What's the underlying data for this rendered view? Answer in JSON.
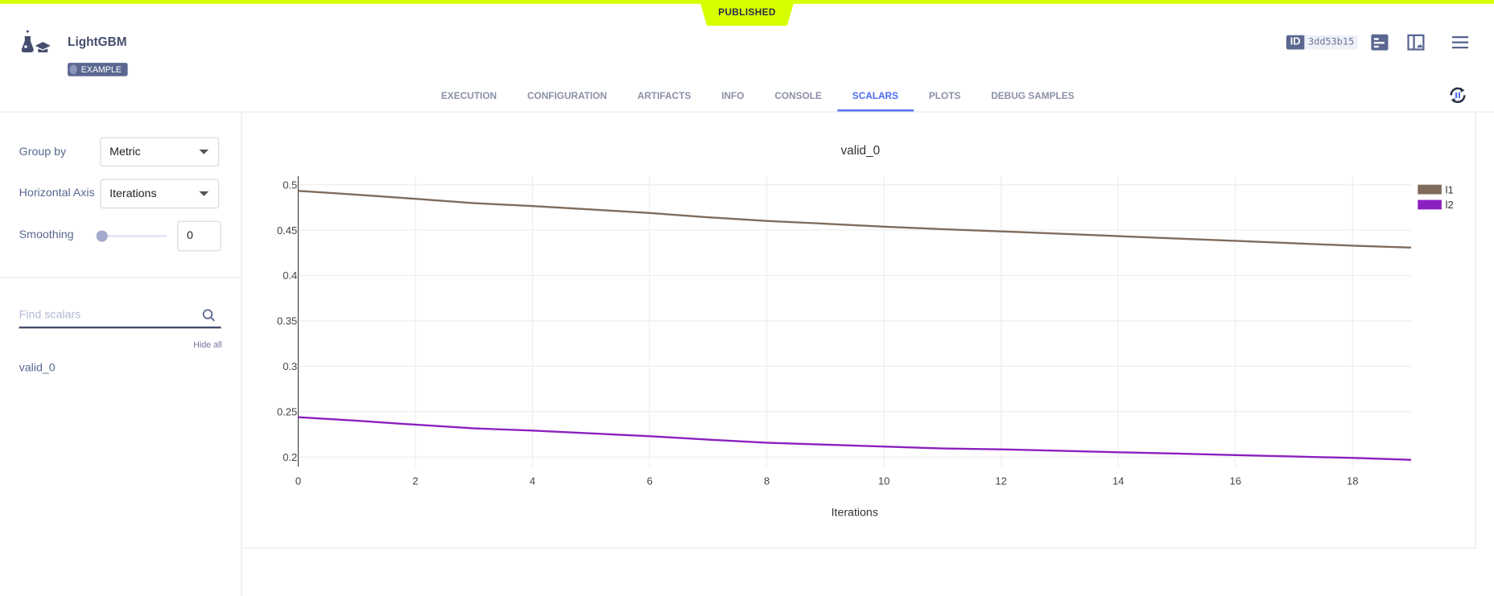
{
  "header": {
    "status": "PUBLISHED",
    "title": "LightGBM",
    "badge": "EXAMPLE",
    "id_label": "ID",
    "id_value": "3dd53b15"
  },
  "tabs": [
    {
      "label": "EXECUTION"
    },
    {
      "label": "CONFIGURATION"
    },
    {
      "label": "ARTIFACTS"
    },
    {
      "label": "INFO"
    },
    {
      "label": "CONSOLE"
    },
    {
      "label": "SCALARS",
      "active": true
    },
    {
      "label": "PLOTS"
    },
    {
      "label": "DEBUG SAMPLES"
    }
  ],
  "settings": {
    "group_by_label": "Group by",
    "group_by_value": "Metric",
    "horizontal_axis_label": "Horizontal Axis",
    "horizontal_axis_value": "Iterations",
    "smoothing_label": "Smoothing",
    "smoothing_value": "0",
    "smoothing_level": 0
  },
  "scalars": {
    "search_placeholder": "Find scalars",
    "hide_all": "Hide all",
    "items": [
      "valid_0"
    ]
  },
  "colors": {
    "accent": "#4d6df2",
    "published": "#d8ff00"
  },
  "chart_data": {
    "type": "line",
    "title": "valid_0",
    "xlabel": "Iterations",
    "ylabel": "",
    "xlim": [
      0,
      19
    ],
    "ylim": [
      0.188,
      0.51
    ],
    "xticks": [
      0,
      2,
      4,
      6,
      8,
      10,
      12,
      14,
      16,
      18
    ],
    "yticks": [
      0.2,
      0.25,
      0.3,
      0.35,
      0.4,
      0.45,
      0.5
    ],
    "ytick_labels": [
      "0.2",
      "0.25",
      "0.3",
      "0.35",
      "0.4",
      "0.45",
      "0.5"
    ],
    "grid": true,
    "legend": "top-right",
    "x": [
      0,
      1,
      2,
      3,
      4,
      5,
      6,
      7,
      8,
      9,
      10,
      11,
      12,
      13,
      14,
      15,
      16,
      17,
      18,
      19
    ],
    "series": [
      {
        "name": "l1",
        "color": "#806b5b",
        "values": [
          0.4932,
          0.489,
          0.4844,
          0.4797,
          0.4765,
          0.4727,
          0.4688,
          0.4641,
          0.4601,
          0.457,
          0.4538,
          0.451,
          0.4486,
          0.446,
          0.4433,
          0.4407,
          0.4381,
          0.4355,
          0.4328,
          0.4307
        ]
      },
      {
        "name": "l2",
        "color": "#8a20c0",
        "values": [
          0.2438,
          0.24,
          0.2356,
          0.2315,
          0.2291,
          0.226,
          0.2229,
          0.2191,
          0.2157,
          0.2136,
          0.2115,
          0.2094,
          0.2084,
          0.2068,
          0.2052,
          0.2037,
          0.2021,
          0.2005,
          0.199,
          0.1969
        ]
      }
    ]
  }
}
